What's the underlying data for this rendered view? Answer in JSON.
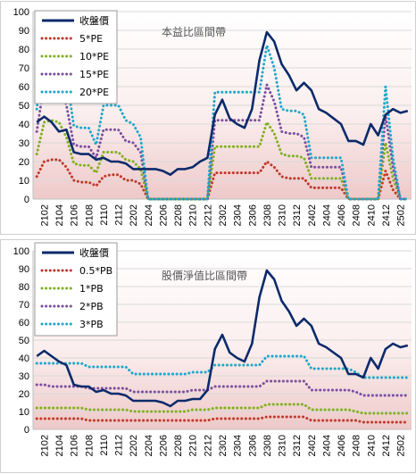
{
  "chart_data": [
    {
      "type": "line",
      "title": "本益比區間帶",
      "ylim": [
        0,
        100
      ],
      "yticks": [
        0,
        10,
        20,
        30,
        40,
        50,
        60,
        70,
        80,
        90,
        100
      ],
      "x_tick_labels": [
        "2102",
        "2104",
        "2106",
        "2108",
        "2110",
        "2112",
        "2202",
        "2204",
        "2206",
        "2208",
        "2210",
        "2212",
        "2302",
        "2304",
        "2306",
        "2308",
        "2310",
        "2312",
        "2402",
        "2404",
        "2406",
        "2408",
        "2410",
        "2412",
        "2502"
      ],
      "x": [
        "2101",
        "2102",
        "2103",
        "2104",
        "2105",
        "2106",
        "2107",
        "2108",
        "2109",
        "2110",
        "2111",
        "2112",
        "2201",
        "2202",
        "2203",
        "2204",
        "2205",
        "2206",
        "2207",
        "2208",
        "2209",
        "2210",
        "2211",
        "2212",
        "2301",
        "2302",
        "2303",
        "2304",
        "2305",
        "2306",
        "2307",
        "2308",
        "2309",
        "2310",
        "2311",
        "2312",
        "2401",
        "2402",
        "2403",
        "2404",
        "2405",
        "2406",
        "2407",
        "2408",
        "2409",
        "2410",
        "2411",
        "2412",
        "2501",
        "2502",
        "2503"
      ],
      "legend_position": "top-left",
      "grid": true,
      "series": [
        {
          "name": "收盤價",
          "color": "#0b2a6b",
          "style": "solid",
          "values": [
            41,
            44,
            41,
            36,
            37,
            25,
            24,
            24,
            21,
            22,
            20,
            20,
            19,
            16,
            16,
            16,
            16,
            15,
            13,
            16,
            16,
            17,
            20,
            22,
            45,
            53,
            43,
            40,
            38,
            48,
            74,
            89,
            84,
            72,
            66,
            58,
            62,
            58,
            48,
            46,
            43,
            40,
            31,
            31,
            29,
            40,
            34,
            45,
            48,
            46,
            47
          ]
        },
        {
          "name": "5*PE",
          "color": "#c0392b",
          "style": "dotted",
          "values": [
            12,
            20,
            21,
            21,
            17,
            10,
            9,
            9,
            7,
            12,
            13,
            13,
            10,
            10,
            8,
            0,
            0,
            0,
            0,
            0,
            0,
            0,
            0,
            0,
            14,
            14,
            14,
            14,
            14,
            14,
            14,
            20,
            17,
            12,
            11,
            11,
            11,
            6,
            6,
            6,
            6,
            6,
            0,
            0,
            0,
            0,
            0,
            15,
            5,
            0,
            0
          ]
        },
        {
          "name": "10*PE",
          "color": "#7fb020",
          "style": "dotted",
          "values": [
            24,
            41,
            42,
            41,
            33,
            19,
            18,
            18,
            14,
            25,
            25,
            25,
            21,
            20,
            16,
            0,
            0,
            0,
            0,
            0,
            0,
            0,
            0,
            0,
            28,
            28,
            28,
            28,
            28,
            28,
            28,
            41,
            35,
            24,
            23,
            23,
            22,
            11,
            11,
            11,
            11,
            11,
            0,
            0,
            0,
            0,
            0,
            30,
            11,
            0,
            0
          ]
        },
        {
          "name": "15*PE",
          "color": "#7a4ea0",
          "style": "dotted",
          "values": [
            36,
            62,
            63,
            62,
            50,
            29,
            28,
            28,
            22,
            37,
            37,
            37,
            31,
            30,
            25,
            0,
            0,
            0,
            0,
            0,
            0,
            0,
            0,
            0,
            42,
            42,
            42,
            42,
            42,
            42,
            42,
            61,
            52,
            36,
            35,
            35,
            33,
            17,
            17,
            17,
            17,
            17,
            0,
            0,
            0,
            0,
            0,
            45,
            17,
            0,
            0
          ]
        },
        {
          "name": "20*PE",
          "color": "#1fa7c9",
          "style": "dotted",
          "values": [
            48,
            83,
            84,
            83,
            66,
            39,
            38,
            38,
            29,
            50,
            50,
            50,
            42,
            40,
            33,
            0,
            0,
            0,
            0,
            0,
            0,
            0,
            0,
            0,
            57,
            57,
            57,
            57,
            57,
            57,
            57,
            82,
            70,
            48,
            47,
            47,
            45,
            22,
            22,
            22,
            22,
            22,
            0,
            0,
            0,
            0,
            0,
            60,
            22,
            0,
            0
          ]
        }
      ]
    },
    {
      "type": "line",
      "title": "股價淨值比區間帶",
      "ylim": [
        0,
        100
      ],
      "yticks": [
        0,
        10,
        20,
        30,
        40,
        50,
        60,
        70,
        80,
        90,
        100
      ],
      "x_tick_labels": [
        "2102",
        "2104",
        "2106",
        "2108",
        "2110",
        "2112",
        "2202",
        "2204",
        "2206",
        "2208",
        "2210",
        "2212",
        "2302",
        "2304",
        "2306",
        "2308",
        "2310",
        "2312",
        "2402",
        "2404",
        "2406",
        "2408",
        "2410",
        "2412",
        "2502"
      ],
      "x": [
        "2101",
        "2102",
        "2103",
        "2104",
        "2105",
        "2106",
        "2107",
        "2108",
        "2109",
        "2110",
        "2111",
        "2112",
        "2201",
        "2202",
        "2203",
        "2204",
        "2205",
        "2206",
        "2207",
        "2208",
        "2209",
        "2210",
        "2211",
        "2212",
        "2301",
        "2302",
        "2303",
        "2304",
        "2305",
        "2306",
        "2307",
        "2308",
        "2309",
        "2310",
        "2311",
        "2312",
        "2401",
        "2402",
        "2403",
        "2404",
        "2405",
        "2406",
        "2407",
        "2408",
        "2409",
        "2410",
        "2411",
        "2412",
        "2501",
        "2502",
        "2503"
      ],
      "legend_position": "top-left",
      "grid": true,
      "series": [
        {
          "name": "收盤價",
          "color": "#0b2a6b",
          "style": "solid",
          "values": [
            41,
            44,
            41,
            38,
            36,
            25,
            24,
            24,
            21,
            22,
            20,
            20,
            19,
            16,
            16,
            16,
            16,
            15,
            13,
            16,
            16,
            17,
            17,
            22,
            45,
            53,
            43,
            40,
            38,
            48,
            74,
            89,
            84,
            72,
            66,
            58,
            62,
            58,
            48,
            46,
            43,
            40,
            31,
            31,
            29,
            40,
            34,
            45,
            48,
            46,
            47
          ]
        },
        {
          "name": "0.5*PB",
          "color": "#c0392b",
          "style": "dotted",
          "values": [
            6,
            6,
            6,
            6,
            6,
            6,
            6,
            5,
            5,
            5,
            5,
            5,
            5,
            5,
            5,
            5,
            5,
            5,
            5,
            5,
            5,
            5,
            5,
            5,
            6,
            6,
            6,
            6,
            6,
            6,
            6,
            7,
            7,
            7,
            7,
            7,
            7,
            5,
            5,
            5,
            5,
            5,
            5,
            5,
            4,
            4,
            4,
            4,
            4,
            4,
            4
          ]
        },
        {
          "name": "1*PB",
          "color": "#7fb020",
          "style": "dotted",
          "values": [
            12,
            12,
            12,
            12,
            12,
            12,
            12,
            11,
            11,
            11,
            11,
            11,
            11,
            10,
            10,
            10,
            10,
            10,
            10,
            10,
            10,
            11,
            11,
            11,
            12,
            12,
            12,
            12,
            12,
            12,
            12,
            14,
            14,
            14,
            14,
            14,
            14,
            11,
            11,
            11,
            11,
            11,
            11,
            10,
            9,
            9,
            9,
            9,
            9,
            9,
            9
          ]
        },
        {
          "name": "2*PB",
          "color": "#7a4ea0",
          "style": "dotted",
          "values": [
            25,
            25,
            24,
            24,
            24,
            24,
            24,
            23,
            23,
            23,
            23,
            23,
            23,
            21,
            21,
            21,
            21,
            21,
            21,
            21,
            21,
            22,
            22,
            22,
            24,
            24,
            24,
            24,
            24,
            24,
            24,
            27,
            27,
            27,
            27,
            27,
            27,
            22,
            22,
            22,
            22,
            22,
            22,
            21,
            19,
            19,
            19,
            19,
            19,
            19,
            19
          ]
        },
        {
          "name": "3*PB",
          "color": "#1fa7c9",
          "style": "dotted",
          "values": [
            37,
            37,
            37,
            37,
            37,
            37,
            37,
            35,
            35,
            35,
            35,
            35,
            35,
            31,
            31,
            31,
            31,
            31,
            31,
            31,
            31,
            32,
            32,
            32,
            36,
            36,
            36,
            36,
            36,
            36,
            36,
            41,
            41,
            41,
            41,
            41,
            41,
            34,
            34,
            34,
            34,
            34,
            34,
            32,
            29,
            29,
            29,
            29,
            29,
            29,
            29
          ]
        }
      ]
    }
  ]
}
